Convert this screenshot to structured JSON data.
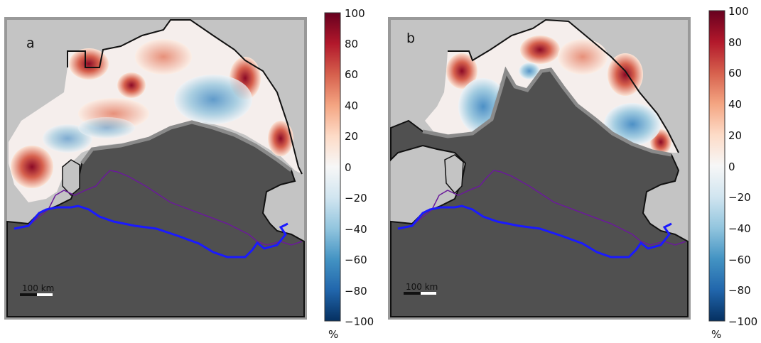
{
  "panels": [
    {
      "letter": "a",
      "scale_text": "100 km"
    },
    {
      "letter": "b",
      "scale_text": "100 km"
    }
  ],
  "colorbar": {
    "ticks": [
      "100",
      "80",
      "60",
      "40",
      "20",
      "0",
      "−20",
      "−40",
      "−60",
      "−80",
      "−100"
    ],
    "unit": "%",
    "range": [
      -100,
      100
    ],
    "colormap": "RdBu_r"
  },
  "colors": {
    "land": "#c4c4c4",
    "masked_ice": "#505050",
    "blue_line": "#1a1aff",
    "purple_line": "#6a1a9a",
    "frame": "#999999"
  }
}
